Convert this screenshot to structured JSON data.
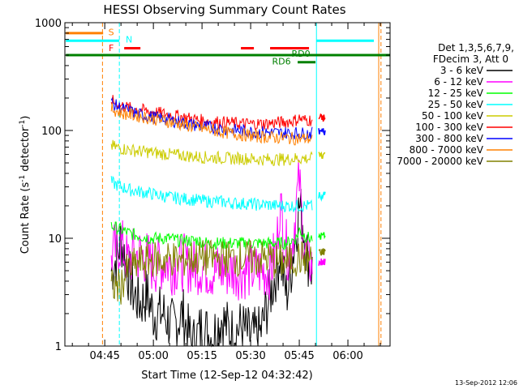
{
  "title": "HESSI Observing Summary Count Rates",
  "xlabel": "Start Time (12-Sep-12 04:32:42)",
  "ylabel_main": "Count Rate (s",
  "ylabel_sup1": "-1",
  "ylabel_mid": " detector",
  "ylabel_sup2": "-1",
  "ylabel_end": ")",
  "timestamp": "13-Sep-2012 12:06",
  "legend_header": [
    "Det 1,3,5,6,7,9,",
    "FDecim 3, Att 0"
  ],
  "flags": {
    "S": "S",
    "N": "N",
    "F": "F",
    "RD0": "RD0",
    "RD6": "RD6"
  },
  "colors": {
    "b3_6": "#000000",
    "b6_12": "#ff00ff",
    "b12_25": "#00ff00",
    "b25_50": "#00ffff",
    "b50_100": "#cccc00",
    "b100_300": "#ff0000",
    "b300_800": "#0000ff",
    "b800_7000": "#ff8000",
    "b7000_20000": "#808000",
    "saa": "#ff8000",
    "night": "#00ffff",
    "flare": "#ff0000",
    "decim": "#008000"
  },
  "chart_data": {
    "type": "line",
    "title": "HESSI Observing Summary Count Rates",
    "xlabel": "Start Time (12-Sep-12 04:32:42)",
    "ylabel": "Count Rate (s^-1 detector^-1)",
    "yscale": "log",
    "ylim": [
      1,
      1000
    ],
    "xlim_minutes": [
      272.7,
      373
    ],
    "x_ticks": [
      {
        "t": 285,
        "label": "04:45"
      },
      {
        "t": 300,
        "label": "05:00"
      },
      {
        "t": 315,
        "label": "05:15"
      },
      {
        "t": 330,
        "label": "05:30"
      },
      {
        "t": 345,
        "label": "05:45"
      },
      {
        "t": 360,
        "label": "06:00"
      }
    ],
    "y_ticks": [
      {
        "v": 1,
        "label": "1"
      },
      {
        "v": 10,
        "label": "10"
      },
      {
        "v": 100,
        "label": "100"
      },
      {
        "v": 1000,
        "label": "1000"
      }
    ],
    "vlines": [
      {
        "t": 284.3,
        "color": "saa",
        "dash": true
      },
      {
        "t": 289.5,
        "color": "night",
        "dash": true
      },
      {
        "t": 350.3,
        "color": "night",
        "dash": false
      },
      {
        "t": 369.5,
        "color": "saa",
        "dash": false
      },
      {
        "t": 370.2,
        "color": "saa",
        "dash": true
      }
    ],
    "series": [
      {
        "name": "3 - 6 keV",
        "color_key": "b3_6",
        "points": [
          [
            287,
            5
          ],
          [
            289,
            7
          ],
          [
            290,
            10
          ],
          [
            292,
            5
          ],
          [
            294,
            3
          ],
          [
            296,
            2.5
          ],
          [
            298,
            3
          ],
          [
            300,
            2
          ],
          [
            303,
            2
          ],
          [
            306,
            1.5
          ],
          [
            309,
            2
          ],
          [
            312,
            1
          ],
          [
            315,
            1.5
          ],
          [
            318,
            1.2
          ],
          [
            321,
            1.8
          ],
          [
            324,
            1.3
          ],
          [
            327,
            1.5
          ],
          [
            330,
            1.2
          ],
          [
            333,
            1.3
          ],
          [
            336,
            3
          ],
          [
            338,
            5
          ],
          [
            339,
            7
          ],
          [
            341,
            3
          ],
          [
            342,
            4
          ],
          [
            344,
            12
          ],
          [
            345,
            20
          ],
          [
            346,
            15
          ],
          [
            347,
            8
          ],
          [
            348,
            6
          ],
          [
            349,
            5
          ]
        ]
      },
      {
        "name": "6 - 12 keV",
        "color_key": "b6_12",
        "points": [
          [
            287,
            7
          ],
          [
            290,
            9
          ],
          [
            292,
            6
          ],
          [
            294,
            7
          ],
          [
            296,
            7
          ],
          [
            298,
            6.5
          ],
          [
            300,
            5.5
          ],
          [
            303,
            6
          ],
          [
            306,
            5.5
          ],
          [
            309,
            6
          ],
          [
            312,
            5.5
          ],
          [
            315,
            5.5
          ],
          [
            318,
            5
          ],
          [
            321,
            5
          ],
          [
            324,
            5
          ],
          [
            327,
            5
          ],
          [
            330,
            5
          ],
          [
            333,
            5
          ],
          [
            336,
            5
          ],
          [
            338,
            8
          ],
          [
            339,
            22
          ],
          [
            340,
            12
          ],
          [
            341,
            8
          ],
          [
            342,
            7
          ],
          [
            343,
            10
          ],
          [
            344,
            20
          ],
          [
            345,
            35
          ],
          [
            346,
            12
          ],
          [
            347,
            7
          ],
          [
            348,
            6
          ],
          [
            349,
            6
          ]
        ]
      },
      {
        "name": "12 - 25 keV",
        "color_key": "b12_25",
        "points": [
          [
            287,
            13
          ],
          [
            290,
            12
          ],
          [
            293,
            11
          ],
          [
            296,
            10.5
          ],
          [
            299,
            10
          ],
          [
            302,
            10
          ],
          [
            305,
            10
          ],
          [
            308,
            9.5
          ],
          [
            311,
            9.5
          ],
          [
            314,
            9.5
          ],
          [
            317,
            9
          ],
          [
            320,
            9
          ],
          [
            323,
            9
          ],
          [
            326,
            9
          ],
          [
            329,
            9
          ],
          [
            332,
            9
          ],
          [
            335,
            9
          ],
          [
            338,
            9
          ],
          [
            341,
            9
          ],
          [
            344,
            10
          ],
          [
            345,
            12
          ],
          [
            346,
            11
          ],
          [
            348,
            10
          ],
          [
            349,
            10
          ]
        ]
      },
      {
        "name": "25 - 50 keV",
        "color_key": "b25_50",
        "points": [
          [
            287,
            33
          ],
          [
            290,
            30
          ],
          [
            293,
            28
          ],
          [
            296,
            27
          ],
          [
            299,
            26
          ],
          [
            302,
            25
          ],
          [
            305,
            24
          ],
          [
            308,
            23.5
          ],
          [
            311,
            23
          ],
          [
            314,
            22.5
          ],
          [
            317,
            22
          ],
          [
            320,
            22
          ],
          [
            323,
            21.5
          ],
          [
            326,
            21
          ],
          [
            329,
            21
          ],
          [
            332,
            20.5
          ],
          [
            335,
            20.5
          ],
          [
            338,
            20
          ],
          [
            341,
            20
          ],
          [
            344,
            20
          ],
          [
            346,
            20
          ],
          [
            348,
            20
          ],
          [
            349,
            19.5
          ]
        ]
      },
      {
        "name": "50 - 100 keV",
        "color_key": "b50_100",
        "points": [
          [
            287,
            72
          ],
          [
            290,
            68
          ],
          [
            293,
            66
          ],
          [
            296,
            64
          ],
          [
            299,
            63
          ],
          [
            302,
            61
          ],
          [
            305,
            60
          ],
          [
            308,
            59
          ],
          [
            311,
            58
          ],
          [
            314,
            57
          ],
          [
            317,
            56
          ],
          [
            320,
            56
          ],
          [
            323,
            55
          ],
          [
            326,
            55
          ],
          [
            329,
            55
          ],
          [
            332,
            54
          ],
          [
            335,
            54
          ],
          [
            338,
            54
          ],
          [
            341,
            54
          ],
          [
            344,
            55
          ],
          [
            346,
            55
          ],
          [
            348,
            55
          ],
          [
            349,
            55
          ]
        ]
      },
      {
        "name": "100 - 300 keV",
        "color_key": "b100_300",
        "points": [
          [
            287,
            190
          ],
          [
            290,
            170
          ],
          [
            293,
            160
          ],
          [
            296,
            155
          ],
          [
            299,
            150
          ],
          [
            302,
            145
          ],
          [
            305,
            140
          ],
          [
            308,
            135
          ],
          [
            311,
            130
          ],
          [
            314,
            125
          ],
          [
            317,
            122
          ],
          [
            320,
            120
          ],
          [
            323,
            118
          ],
          [
            326,
            116
          ],
          [
            329,
            115
          ],
          [
            332,
            115
          ],
          [
            335,
            116
          ],
          [
            338,
            118
          ],
          [
            341,
            120
          ],
          [
            344,
            125
          ],
          [
            345,
            130
          ],
          [
            346,
            125
          ],
          [
            348,
            125
          ],
          [
            349,
            125
          ]
        ]
      },
      {
        "name": "300 - 800 keV",
        "color_key": "b300_800",
        "points": [
          [
            287,
            180
          ],
          [
            290,
            160
          ],
          [
            293,
            150
          ],
          [
            296,
            140
          ],
          [
            299,
            135
          ],
          [
            302,
            130
          ],
          [
            305,
            125
          ],
          [
            308,
            120
          ],
          [
            311,
            115
          ],
          [
            314,
            110
          ],
          [
            317,
            108
          ],
          [
            320,
            105
          ],
          [
            323,
            102
          ],
          [
            326,
            100
          ],
          [
            329,
            98
          ],
          [
            332,
            97
          ],
          [
            335,
            96
          ],
          [
            338,
            95
          ],
          [
            341,
            95
          ],
          [
            344,
            95
          ],
          [
            346,
            94
          ],
          [
            348,
            94
          ],
          [
            349,
            94
          ]
        ]
      },
      {
        "name": "800 - 7000 keV",
        "color_key": "b800_7000",
        "points": [
          [
            287,
            160
          ],
          [
            290,
            145
          ],
          [
            293,
            140
          ],
          [
            296,
            135
          ],
          [
            299,
            130
          ],
          [
            302,
            125
          ],
          [
            305,
            120
          ],
          [
            308,
            115
          ],
          [
            311,
            110
          ],
          [
            314,
            105
          ],
          [
            317,
            102
          ],
          [
            320,
            98
          ],
          [
            323,
            95
          ],
          [
            326,
            92
          ],
          [
            329,
            90
          ],
          [
            332,
            88
          ],
          [
            335,
            87
          ],
          [
            338,
            86
          ],
          [
            341,
            85
          ],
          [
            344,
            84
          ],
          [
            346,
            84
          ],
          [
            348,
            84
          ],
          [
            349,
            84
          ]
        ]
      },
      {
        "name": "7000 - 20000 keV",
        "color_key": "b7000_20000",
        "points": [
          [
            287,
            3.5
          ],
          [
            290,
            3.6
          ],
          [
            292,
            5
          ],
          [
            294,
            5.5
          ],
          [
            296,
            6
          ],
          [
            298,
            6
          ],
          [
            300,
            6.5
          ],
          [
            302,
            6
          ],
          [
            304,
            6.5
          ],
          [
            306,
            6.5
          ],
          [
            308,
            6
          ],
          [
            310,
            6.5
          ],
          [
            312,
            6.5
          ],
          [
            314,
            6.5
          ],
          [
            316,
            6.5
          ],
          [
            318,
            6.5
          ],
          [
            320,
            6.5
          ],
          [
            322,
            6.5
          ],
          [
            324,
            6.5
          ],
          [
            326,
            6.5
          ],
          [
            328,
            6.5
          ],
          [
            330,
            6.5
          ],
          [
            332,
            6.5
          ],
          [
            334,
            6.5
          ],
          [
            336,
            6.5
          ],
          [
            338,
            6
          ],
          [
            340,
            6
          ],
          [
            342,
            6
          ],
          [
            344,
            6.5
          ],
          [
            346,
            6.5
          ],
          [
            348,
            6.5
          ],
          [
            349,
            6.5
          ]
        ]
      }
    ],
    "post_gap_series": [
      {
        "name": "100 - 300 keV",
        "color_key": "b100_300",
        "t0": 351,
        "t1": 353,
        "v": 130
      },
      {
        "name": "300 - 800 keV",
        "color_key": "b300_800",
        "t0": 351,
        "t1": 353,
        "v": 98
      },
      {
        "name": "50 - 100 keV",
        "color_key": "b50_100",
        "t0": 351,
        "t1": 353,
        "v": 60
      },
      {
        "name": "25 - 50 keV",
        "color_key": "b25_50",
        "t0": 351,
        "t1": 353,
        "v": 25
      },
      {
        "name": "12 - 25 keV",
        "color_key": "b12_25",
        "t0": 351,
        "t1": 353,
        "v": 10.5
      },
      {
        "name": "7000 - 20000 keV",
        "color_key": "b7000_20000",
        "t0": 351,
        "t1": 353,
        "v": 7.5
      },
      {
        "name": "6 - 12 keV",
        "color_key": "b6_12",
        "t0": 351,
        "t1": 353,
        "v": 6
      }
    ],
    "flag_bars": [
      {
        "label": "S",
        "color_key": "saa",
        "t0": 273,
        "t1": 284.5,
        "v": 800
      },
      {
        "label": "N",
        "color_key": "night",
        "t0": 273,
        "t1": 289.5,
        "v": 680
      },
      {
        "label": "N",
        "color_key": "night",
        "t0": 350.3,
        "t1": 368,
        "v": 680
      },
      {
        "label": "F",
        "color_key": "flare",
        "t0": 291,
        "t1": 296,
        "v": 580
      },
      {
        "label": "F",
        "color_key": "flare",
        "t0": 327,
        "t1": 331,
        "v": 580
      },
      {
        "label": "F",
        "color_key": "flare",
        "t0": 336,
        "t1": 348,
        "v": 580
      },
      {
        "label": "RD0",
        "color_key": "decim",
        "t0": 273,
        "t1": 373,
        "v": 500
      },
      {
        "label": "RD6",
        "color_key": "decim",
        "t0": 344.5,
        "t1": 350,
        "v": 430
      }
    ],
    "legend": [
      {
        "label": "3 - 6 keV",
        "color_key": "b3_6"
      },
      {
        "label": "6 - 12 keV",
        "color_key": "b6_12"
      },
      {
        "label": "12 - 25 keV",
        "color_key": "b12_25"
      },
      {
        "label": "25 - 50 keV",
        "color_key": "b25_50"
      },
      {
        "label": "50 - 100 keV",
        "color_key": "b50_100"
      },
      {
        "label": "100 - 300 keV",
        "color_key": "b100_300"
      },
      {
        "label": "300 - 800 keV",
        "color_key": "b300_800"
      },
      {
        "label": "800 - 7000 keV",
        "color_key": "b800_7000"
      },
      {
        "label": "7000 - 20000 keV",
        "color_key": "b7000_20000"
      }
    ]
  }
}
